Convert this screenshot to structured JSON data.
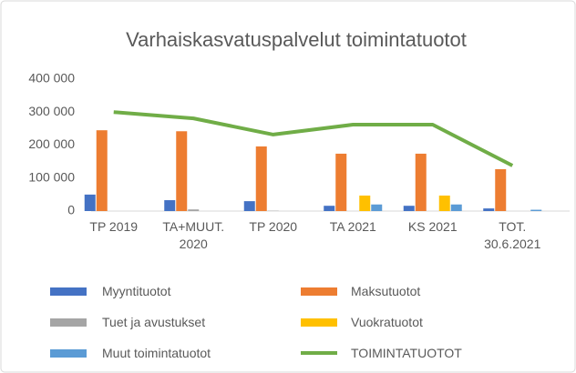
{
  "chart_data": {
    "type": "bar-line",
    "title": "Varhaiskasvatuspalvelut toimintatuotot",
    "categories": [
      "TP 2019",
      "TA+MUUT. 2020",
      "TP 2020",
      "TA 2021",
      "KS 2021",
      "TOT. 30.6.2021"
    ],
    "series": [
      {
        "name": "Myyntituotot",
        "color": "#4472c4",
        "type": "bar",
        "values": [
          50000,
          33000,
          30000,
          16000,
          16000,
          8000
        ]
      },
      {
        "name": "Maksutuotot",
        "color": "#ed7d31",
        "type": "bar",
        "values": [
          245000,
          242000,
          196000,
          174000,
          174000,
          127000
        ]
      },
      {
        "name": "Tuet ja avustukset",
        "color": "#a5a5a5",
        "type": "bar",
        "values": [
          0,
          5000,
          1000,
          0,
          0,
          0
        ]
      },
      {
        "name": "Vuokratuotot",
        "color": "#ffc000",
        "type": "bar",
        "values": [
          0,
          0,
          0,
          47000,
          47000,
          0
        ]
      },
      {
        "name": "Muut toimintatuotot",
        "color": "#5b9bd5",
        "type": "bar",
        "values": [
          0,
          0,
          0,
          20000,
          20000,
          4000
        ]
      },
      {
        "name": "TOIMINTATUOTOT",
        "color": "#70ad47",
        "type": "line",
        "values": [
          300000,
          281000,
          232000,
          262000,
          262000,
          138000
        ]
      }
    ],
    "ylim": [
      0,
      400000
    ],
    "yticks": [
      0,
      {
        "value": 100000,
        "label": "100 000"
      },
      {
        "value": 200000,
        "label": "200 000"
      },
      {
        "value": 300000,
        "label": "300 000"
      },
      {
        "value": 400000,
        "label": "400 000"
      }
    ],
    "grid": false,
    "legend": "bottom"
  }
}
